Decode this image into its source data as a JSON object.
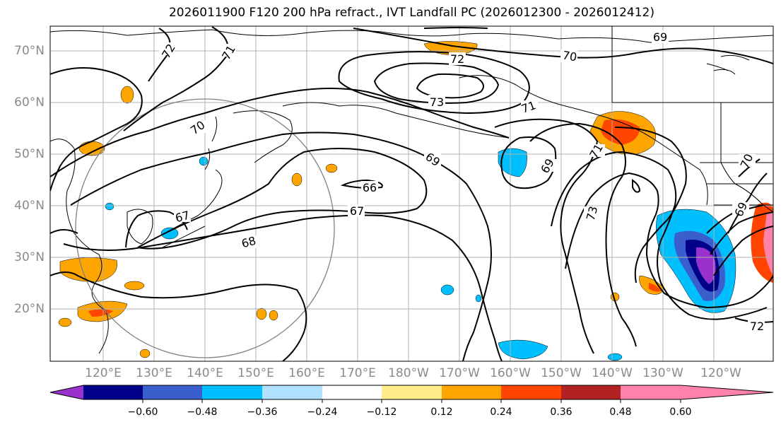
{
  "title": "2026011900 F120 200 hPa refract., IVT Landfall PC (2026012300 - 2026012412)",
  "lat_labels": [
    "70°N",
    "60°N",
    "50°N",
    "40°N",
    "30°N",
    "20°N"
  ],
  "lon_labels": [
    "120°E",
    "130°E",
    "140°E",
    "150°E",
    "160°E",
    "170°E",
    "180°W",
    "170°W",
    "160°W",
    "150°W",
    "140°W",
    "130°W",
    "120°W"
  ],
  "contour_labels": [
    "72",
    "71",
    "70",
    "69",
    "72",
    "73",
    "71",
    "70",
    "69",
    "69",
    "71",
    "66",
    "67",
    "67",
    "68",
    "73",
    "70",
    "69",
    "72"
  ],
  "colorbar": {
    "ticks": [
      "−0.60",
      "−0.48",
      "−0.36",
      "−0.24",
      "−0.12",
      "0.12",
      "0.24",
      "0.36",
      "0.48",
      "0.60"
    ],
    "colors": [
      "#9932cc",
      "#00008b",
      "#3a5fcd",
      "#00bfff",
      "#b0e2ff",
      "#ffffff",
      "#ffec8b",
      "#ffa500",
      "#ff4500",
      "#b22222",
      "#ff82ab"
    ]
  }
}
